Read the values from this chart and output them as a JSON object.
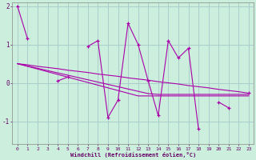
{
  "xlabel": "Windchill (Refroidissement éolien,°C)",
  "background_color": "#cceedd",
  "grid_color": "#aacccc",
  "line_color": "#aa00aa",
  "x": [
    0,
    1,
    2,
    3,
    4,
    5,
    6,
    7,
    8,
    9,
    10,
    11,
    12,
    13,
    14,
    15,
    16,
    17,
    18,
    19,
    20,
    21,
    22,
    23
  ],
  "y_main": [
    2.0,
    1.15,
    null,
    null,
    0.05,
    0.15,
    null,
    0.95,
    1.1,
    -0.9,
    -0.45,
    1.55,
    1.0,
    0.05,
    -0.85,
    1.1,
    0.65,
    0.9,
    -1.2,
    null,
    -0.5,
    -0.65,
    null,
    -0.25
  ],
  "y_line1": [
    0.5,
    0.47,
    0.43,
    0.4,
    0.37,
    0.33,
    0.3,
    0.27,
    0.23,
    0.2,
    0.17,
    0.13,
    0.1,
    0.07,
    0.03,
    0.0,
    -0.03,
    -0.07,
    -0.1,
    -0.13,
    -0.17,
    -0.2,
    -0.23,
    -0.27
  ],
  "y_line2": [
    0.5,
    0.43,
    0.36,
    0.29,
    0.22,
    0.15,
    0.08,
    0.01,
    -0.06,
    -0.13,
    -0.2,
    -0.27,
    -0.34,
    -0.34,
    -0.34,
    -0.34,
    -0.34,
    -0.34,
    -0.34,
    -0.34,
    -0.34,
    -0.34,
    -0.34,
    -0.34
  ],
  "y_line3": [
    0.5,
    0.44,
    0.38,
    0.32,
    0.26,
    0.2,
    0.14,
    0.08,
    0.02,
    -0.04,
    -0.1,
    -0.16,
    -0.22,
    -0.28,
    -0.3,
    -0.3,
    -0.3,
    -0.3,
    -0.3,
    -0.3,
    -0.3,
    -0.3,
    -0.3,
    -0.3
  ],
  "ylim": [
    -1.6,
    2.1
  ],
  "yticks": [
    -1,
    0,
    1,
    2
  ],
  "xlim": [
    -0.5,
    23.5
  ]
}
